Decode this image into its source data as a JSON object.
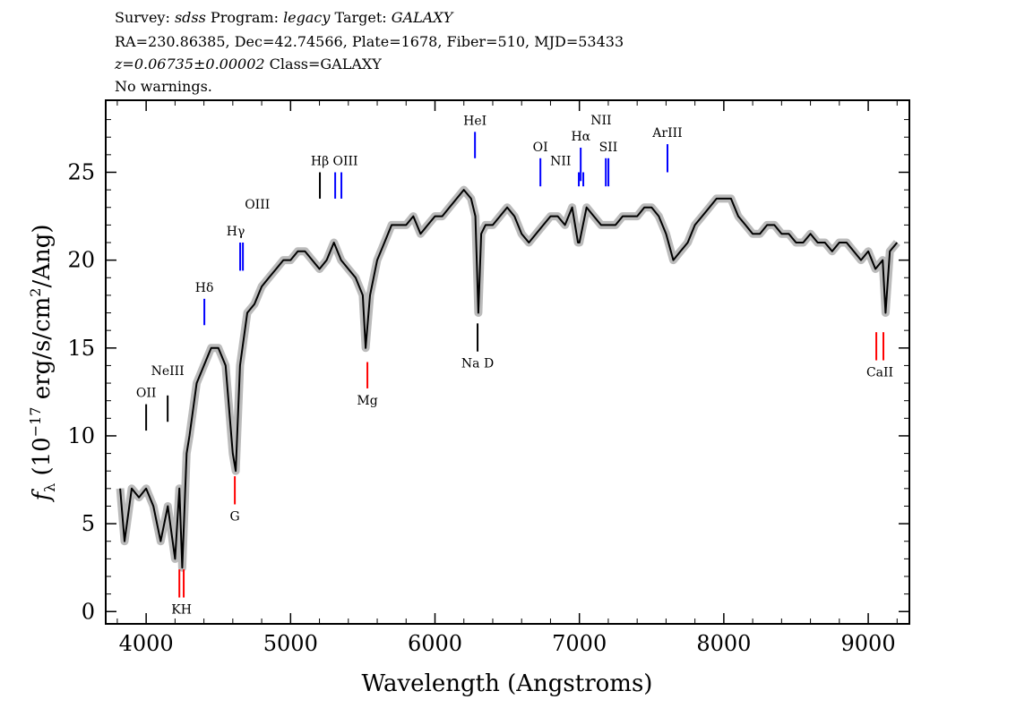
{
  "header": {
    "line1": {
      "survey_label": "Survey:",
      "survey": "sdss",
      "program_label": "Program:",
      "program": "legacy",
      "target_label": "Target:",
      "target": "GALAXY"
    },
    "line2": "RA=230.86385, Dec=42.74566, Plate=1678, Fiber=510, MJD=53433",
    "line3": {
      "z": "z=0.06735±0.00002",
      "class": "Class=GALAXY"
    },
    "line4": "No warnings."
  },
  "chart_data": {
    "type": "line",
    "xlabel": "Wavelength (Angstroms)",
    "ylabel": "f_λ (10^-17 erg/s/cm^2/Ang)",
    "xlim": [
      3720,
      9285
    ],
    "ylim": [
      -0.7,
      29.1
    ],
    "xticks": [
      4000,
      5000,
      6000,
      7000,
      8000,
      9000
    ],
    "yticks": [
      0,
      5,
      10,
      15,
      20,
      25
    ],
    "colors": {
      "flux": "#000000",
      "error_band": "#bbbbbb",
      "emission": "#0000ff",
      "absorption": "#ff0000",
      "sky": "#000000"
    },
    "series": [
      {
        "x": [
          3820,
          3850,
          3900,
          3950,
          4000,
          4050,
          4100,
          4150,
          4200,
          4230,
          4250,
          4280,
          4300,
          4350,
          4400,
          4450,
          4500,
          4550,
          4600,
          4620,
          4650,
          4700,
          4750,
          4800,
          4850,
          4900,
          4950,
          5000,
          5050,
          5100,
          5150,
          5200,
          5250,
          5300,
          5350,
          5400,
          5450,
          5500,
          5520,
          5550,
          5600,
          5650,
          5700,
          5750,
          5800,
          5850,
          5900,
          5950,
          6000,
          6050,
          6100,
          6150,
          6200,
          6250,
          6280,
          6300,
          6320,
          6350,
          6400,
          6450,
          6500,
          6550,
          6600,
          6650,
          6700,
          6750,
          6800,
          6850,
          6900,
          6950,
          6990,
          7000,
          7050,
          7100,
          7150,
          7200,
          7250,
          7300,
          7350,
          7400,
          7450,
          7500,
          7550,
          7600,
          7650,
          7700,
          7750,
          7800,
          7850,
          7900,
          7950,
          8000,
          8050,
          8100,
          8150,
          8200,
          8250,
          8300,
          8350,
          8400,
          8450,
          8500,
          8550,
          8600,
          8650,
          8700,
          8750,
          8800,
          8850,
          8900,
          8950,
          9000,
          9050,
          9100,
          9120,
          9150,
          9200
        ],
        "y": [
          7,
          4,
          7,
          6.5,
          7,
          6,
          4,
          6,
          3,
          7,
          2.5,
          9,
          10,
          13,
          14,
          15,
          15,
          14,
          9,
          8,
          14,
          17,
          17.5,
          18.5,
          19,
          19.5,
          20,
          20,
          20.5,
          20.5,
          20,
          19.5,
          20,
          21,
          20,
          19.5,
          19,
          18,
          15,
          18,
          20,
          21,
          22,
          22,
          22,
          22.5,
          21.5,
          22,
          22.5,
          22.5,
          23,
          23.5,
          24,
          23.5,
          22.5,
          17,
          21.5,
          22,
          22,
          22.5,
          23,
          22.5,
          21.5,
          21,
          21.5,
          22,
          22.5,
          22.5,
          22,
          23,
          21,
          21,
          23,
          22.5,
          22,
          22,
          22,
          22.5,
          22.5,
          22.5,
          23,
          23,
          22.5,
          21.5,
          20,
          20.5,
          21,
          22,
          22.5,
          23,
          23.5,
          23.5,
          23.5,
          22.5,
          22,
          21.5,
          21.5,
          22,
          22,
          21.5,
          21.5,
          21,
          21,
          21.5,
          21,
          21,
          20.5,
          21,
          21,
          20.5,
          20,
          20.5,
          19.5,
          20,
          17,
          20.5,
          21
        ]
      }
    ],
    "emission_lines": [
      {
        "label": "OII",
        "waves": [
          4000
        ],
        "tick": [
          10.3,
          11.8
        ],
        "color": "#000000"
      },
      {
        "label": "NeIII",
        "waves": [
          4149
        ],
        "tick": [
          10.8,
          12.3
        ],
        "color": "#000000"
      },
      {
        "label": "Hδ",
        "waves": [
          4403
        ],
        "tick": [
          16.3,
          17.8
        ],
        "color": "#0000ff"
      },
      {
        "label": "Hγ",
        "waves": [
          4651
        ],
        "tick": [
          19.4,
          21.0
        ],
        "color": "#0000ff",
        "label_wave": 4620
      },
      {
        "label": "OIII",
        "waves": [
          4670
        ],
        "tick": [
          19.4,
          21.0
        ],
        "color": "#0000ff",
        "label_wave": 4770
      },
      {
        "label": "Hβ",
        "waves": [
          5203
        ],
        "tick": [
          23.5,
          25.0
        ],
        "color": "#000000"
      },
      {
        "label": "OIII",
        "waves": [
          5309,
          5352
        ],
        "tick": [
          23.5,
          25.0
        ],
        "color": "#0000ff",
        "label_wave": 5380
      },
      {
        "label": "HeI",
        "waves": [
          6277
        ],
        "tick": [
          25.8,
          27.3
        ],
        "color": "#0000ff"
      },
      {
        "label": "OI",
        "waves": [
          6730
        ],
        "tick": [
          24.2,
          25.8
        ],
        "color": "#0000ff"
      },
      {
        "label": "NII",
        "waves": [
          6996,
          7027
        ],
        "tick": [
          24.2,
          25.0
        ],
        "color": "#0000ff",
        "label_wave": 6870
      },
      {
        "label": "Hα",
        "waves": [
          7009
        ],
        "tick": [
          24.5,
          26.4
        ],
        "color": "#0000ff",
        "label_wave": 7010
      },
      {
        "label": "NII",
        "waves": [
          7183
        ],
        "tick": [
          24.2,
          25.8
        ],
        "color": "#0000ff",
        "label_wave": 7150
      },
      {
        "label": "SII",
        "waves": [
          7201
        ],
        "tick": [
          24.2,
          25.8
        ],
        "color": "#0000ff",
        "label_wave": 7200
      },
      {
        "label": "ArIII",
        "waves": [
          7610
        ],
        "tick": [
          25.0,
          26.6
        ],
        "color": "#0000ff"
      }
    ],
    "absorption_lines": [
      {
        "label": "KH",
        "waves": [
          4230,
          4260
        ],
        "tick": [
          0.8,
          2.4
        ],
        "color": "#ff0000"
      },
      {
        "label": "G",
        "waves": [
          4614
        ],
        "tick": [
          6.1,
          7.7
        ],
        "color": "#ff0000"
      },
      {
        "label": "Mg",
        "waves": [
          5532
        ],
        "tick": [
          12.7,
          14.2
        ],
        "color": "#ff0000"
      },
      {
        "label": "Na D",
        "waves": [
          6295
        ],
        "tick": [
          14.8,
          16.4
        ],
        "color": "#000000"
      },
      {
        "label": "CaII",
        "waves": [
          9056,
          9105
        ],
        "tick": [
          14.3,
          15.9
        ],
        "color": "#ff0000"
      }
    ]
  }
}
